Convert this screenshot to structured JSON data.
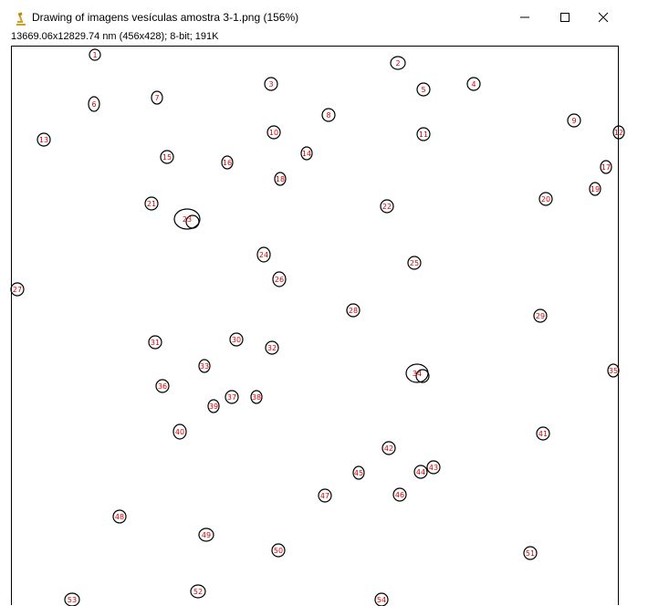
{
  "window": {
    "title": "Drawing of imagens vesículas amostra 3-1.png (156%)",
    "info": "13669.06x12829.74 nm (456x428); 8-bit; 191K",
    "icon": "imagej-microscope-icon",
    "controls": [
      "minimize-icon",
      "maximize-icon",
      "close-icon"
    ]
  },
  "drawing": {
    "outline_color": "#000000",
    "label_color": "#e00000",
    "labels": [
      "1",
      "2",
      "3",
      "4",
      "5",
      "6",
      "7",
      "8",
      "9",
      "10",
      "11",
      "12",
      "13",
      "14",
      "15",
      "16",
      "17",
      "18",
      "19",
      "20",
      "21",
      "22",
      "23",
      "24",
      "25",
      "26",
      "27",
      "28",
      "29",
      "30",
      "31",
      "32",
      "33",
      "34",
      "35",
      "36",
      "37",
      "38",
      "39",
      "40",
      "41",
      "42",
      "43",
      "44",
      "45",
      "46",
      "47",
      "48",
      "49",
      "50",
      "51",
      "52",
      "53",
      "54"
    ]
  }
}
